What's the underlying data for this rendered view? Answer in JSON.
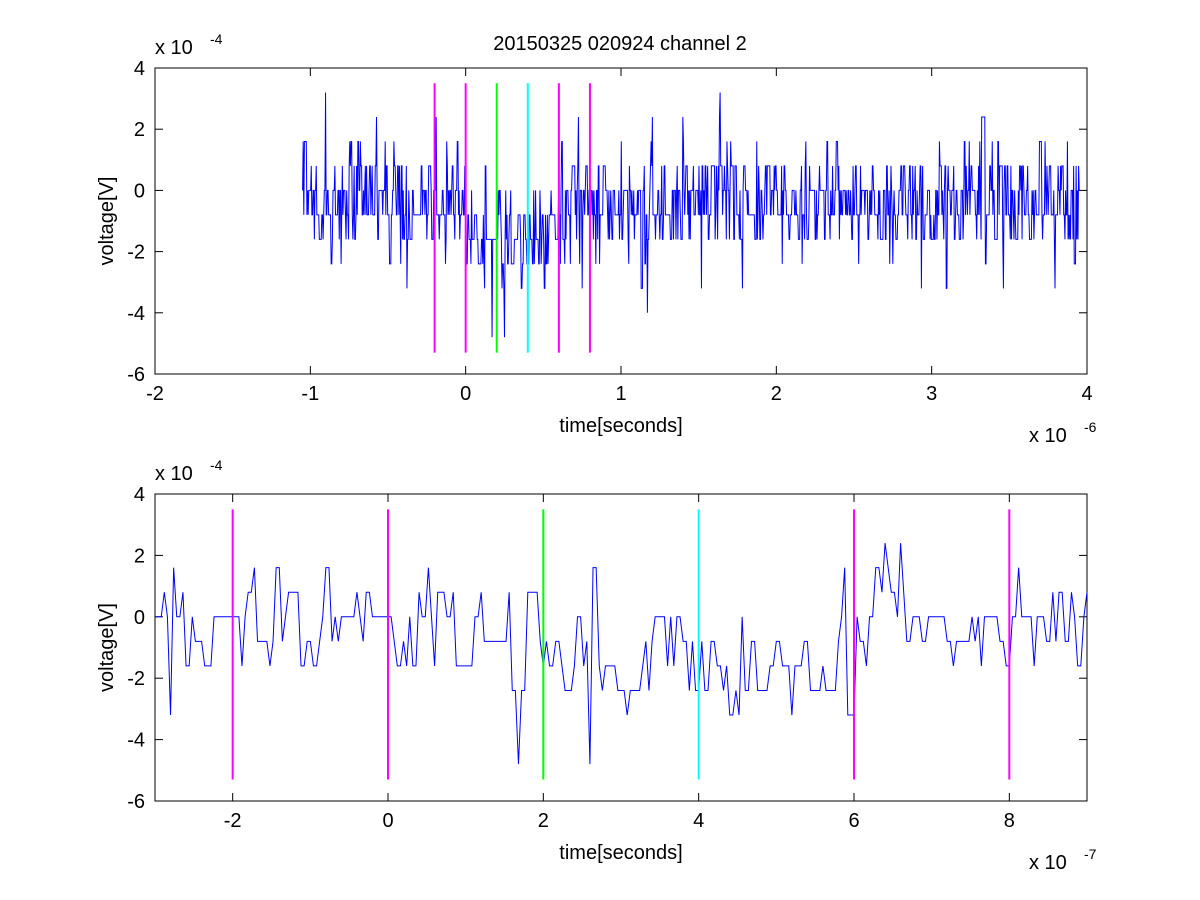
{
  "figure": {
    "title": "20150325 020924 channel 2"
  },
  "chart_data": [
    {
      "type": "line",
      "title": "20150325 020924 channel 2",
      "xlabel": "time[seconds]",
      "ylabel": "voltage[V]",
      "x_exponent_label": "x 10",
      "x_exponent": "-6",
      "y_exponent_label": "x 10",
      "y_exponent": "-4",
      "xlim": [
        -2,
        4
      ],
      "ylim": [
        -6,
        4
      ],
      "xticks": [
        -2,
        -1,
        0,
        1,
        2,
        3,
        4
      ],
      "xtick_labels": [
        "-2",
        "-1",
        "0",
        "1",
        "2",
        "3",
        "4"
      ],
      "yticks": [
        -6,
        -4,
        -2,
        0,
        2,
        4
      ],
      "ytick_labels": [
        "-6",
        "-4",
        "-2",
        "0",
        "2",
        "4"
      ],
      "grid": false,
      "series": [
        {
          "color": "#0000ff",
          "x_start": -1.05,
          "x_end": 3.95,
          "x_step": 0.004,
          "noise_levels": [
            -3.2,
            -2.4,
            -1.6,
            -0.8,
            0,
            0.8,
            1.6,
            2.4,
            3.2
          ],
          "dip_region": [
            0.0,
            0.6
          ],
          "notable_points": [
            {
              "x": -0.9,
              "y": 3.2
            },
            {
              "x": 0.17,
              "y": -4.8
            },
            {
              "x": 0.25,
              "y": -4.8
            },
            {
              "x": 1.17,
              "y": -4.0
            },
            {
              "x": 1.4,
              "y": 2.4
            }
          ]
        }
      ],
      "vlines": [
        {
          "x": -0.2,
          "y_from": -5.3,
          "y_to": 3.5,
          "color": "#ff00ff"
        },
        {
          "x": 0.0,
          "y_from": -5.3,
          "y_to": 3.5,
          "color": "#ff00ff"
        },
        {
          "x": 0.2,
          "y_from": -5.3,
          "y_to": 3.5,
          "color": "#00ff00"
        },
        {
          "x": 0.4,
          "y_from": -5.3,
          "y_to": 3.5,
          "color": "#00ffff"
        },
        {
          "x": 0.6,
          "y_from": -5.3,
          "y_to": 3.5,
          "color": "#ff00ff"
        },
        {
          "x": 0.8,
          "y_from": -5.3,
          "y_to": 3.5,
          "color": "#ff00ff"
        }
      ]
    },
    {
      "type": "line",
      "title": "",
      "xlabel": "time[seconds]",
      "ylabel": "voltage[V]",
      "x_exponent_label": "x 10",
      "x_exponent": "-7",
      "y_exponent_label": "x 10",
      "y_exponent": "-4",
      "xlim": [
        -3,
        9
      ],
      "ylim": [
        -6,
        4
      ],
      "xticks": [
        -2,
        0,
        2,
        4,
        6,
        8
      ],
      "xtick_labels": [
        "-2",
        "0",
        "2",
        "4",
        "6",
        "8"
      ],
      "yticks": [
        -6,
        -4,
        -2,
        0,
        2,
        4
      ],
      "ytick_labels": [
        "-6",
        "-4",
        "-2",
        "0",
        "2",
        "4"
      ],
      "grid": false,
      "series": [
        {
          "color": "#0000ff",
          "x_start": -3,
          "x_end": 9,
          "x_step": 0.04,
          "noise_levels": [
            -3.2,
            -2.4,
            -1.6,
            -0.8,
            0,
            0.8,
            1.6,
            2.4
          ],
          "dip_region": [
            1.6,
            6.0
          ],
          "notable_points": [
            {
              "x": -2.8,
              "y": -3.2
            },
            {
              "x": 1.7,
              "y": -4.8
            },
            {
              "x": 2.6,
              "y": -4.8
            },
            {
              "x": 6.4,
              "y": 2.4
            }
          ]
        }
      ],
      "vlines": [
        {
          "x": -2,
          "y_from": -5.3,
          "y_to": 3.5,
          "color": "#ff00ff"
        },
        {
          "x": 0,
          "y_from": -5.3,
          "y_to": 3.5,
          "color": "#ff00ff"
        },
        {
          "x": 2,
          "y_from": -5.3,
          "y_to": 3.5,
          "color": "#00ff00"
        },
        {
          "x": 4,
          "y_from": -5.3,
          "y_to": 3.5,
          "color": "#00ffff"
        },
        {
          "x": 6,
          "y_from": -5.3,
          "y_to": 3.5,
          "color": "#ff00ff"
        },
        {
          "x": 8,
          "y_from": -5.3,
          "y_to": 3.5,
          "color": "#ff00ff"
        }
      ]
    }
  ]
}
